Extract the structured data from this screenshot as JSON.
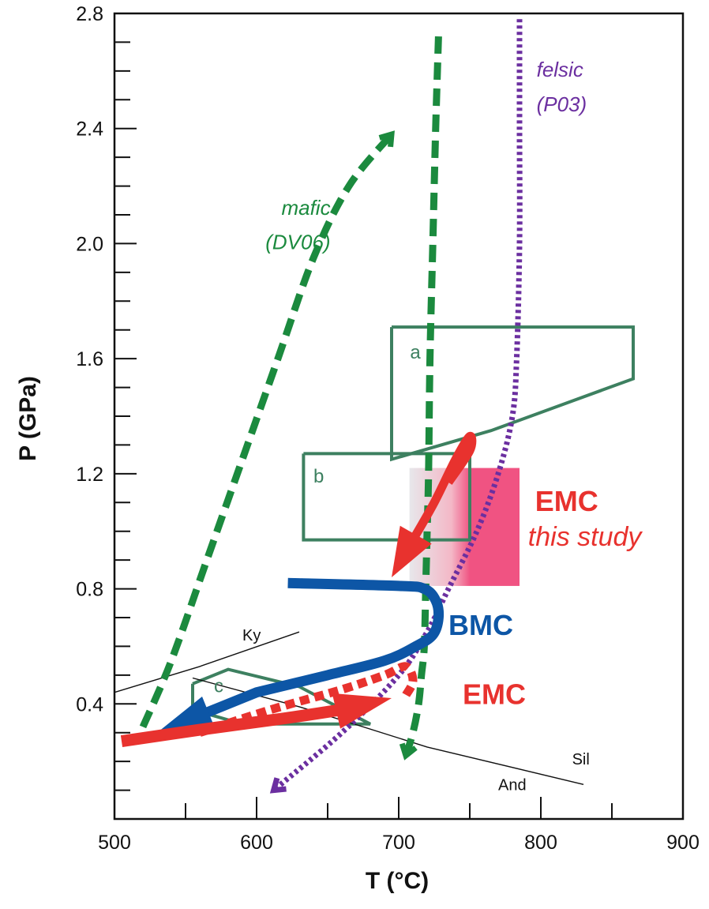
{
  "chart_data": {
    "type": "line",
    "title": "",
    "xlabel": "T (°C)",
    "ylabel": "P (GPa)",
    "xlim": [
      500,
      900
    ],
    "ylim": [
      0.0,
      2.8
    ],
    "x_ticks": [
      500,
      600,
      700,
      800,
      900
    ],
    "x_tick_labels": [
      "500",
      "600",
      "700",
      "800",
      "900"
    ],
    "y_ticks": [
      0.4,
      0.8,
      1.2,
      1.6,
      2.0,
      2.4,
      2.8
    ],
    "y_tick_labels": [
      "0.4",
      "0.8",
      "1.2",
      "1.6",
      "2.0",
      "2.4",
      "2.8"
    ],
    "grid": false,
    "colors": {
      "green": "#1b8a3e",
      "box_green": "#3d8060",
      "purple": "#6b2fa0",
      "red": "#e8322e",
      "blue": "#0d56a6",
      "pink": "#ef4a7b"
    },
    "series": [
      {
        "name": "mafic (DV06)",
        "style": "dashed",
        "color": "#1b8a3e",
        "x": [
          520,
          540,
          565,
          590,
          615,
          640,
          665,
          695
        ],
        "y": [
          0.32,
          0.55,
          0.9,
          1.25,
          1.6,
          1.95,
          2.2,
          2.38
        ]
      },
      {
        "name": "",
        "style": "dashed",
        "color": "#1b8a3e",
        "x": [
          728,
          726,
          724,
          722,
          721,
          720,
          719,
          718,
          716,
          714,
          710,
          705
        ],
        "y": [
          2.72,
          2.4,
          2.0,
          1.6,
          1.2,
          1.0,
          0.8,
          0.6,
          0.5,
          0.4,
          0.3,
          0.22
        ]
      },
      {
        "name": "felsic (P03)",
        "style": "dotted",
        "color": "#6b2fa0",
        "x": [
          785,
          785,
          785,
          783,
          780,
          770,
          755,
          735,
          720,
          700,
          660,
          612
        ],
        "y": [
          2.78,
          2.4,
          2.0,
          1.6,
          1.4,
          1.2,
          1.0,
          0.8,
          0.65,
          0.5,
          0.3,
          0.1
        ]
      },
      {
        "name": "BMC",
        "style": "solid",
        "color": "#0d56a6",
        "x": [
          622,
          700,
          718,
          726,
          728,
          724,
          712,
          690,
          650,
          600,
          530
        ],
        "y": [
          0.82,
          0.81,
          0.8,
          0.76,
          0.7,
          0.64,
          0.6,
          0.55,
          0.5,
          0.44,
          0.3
        ]
      },
      {
        "name": "EMC",
        "style": "solid",
        "color": "#e8322e",
        "x": [
          505,
          560,
          620,
          660,
          695
        ],
        "y": [
          0.27,
          0.31,
          0.35,
          0.38,
          0.42
        ]
      },
      {
        "name": "",
        "style": "dotted",
        "color": "#e8322e",
        "x": [
          560,
          610,
          660,
          690,
          705,
          710,
          705
        ],
        "y": [
          0.3,
          0.38,
          0.45,
          0.5,
          0.53,
          0.48,
          0.43
        ]
      },
      {
        "name": "EMC this study",
        "style": "solid",
        "color": "#e8322e",
        "x": [
          735,
          750,
          750,
          740,
          725,
          710,
          695
        ],
        "y": [
          1.17,
          1.28,
          1.33,
          1.25,
          1.1,
          0.97,
          0.84
        ]
      }
    ],
    "boxes": [
      {
        "label": "a",
        "x": [
          695,
          865,
          865,
          765,
          695,
          695
        ],
        "y": [
          1.71,
          1.71,
          1.53,
          1.35,
          1.25,
          1.71
        ]
      },
      {
        "label": "b",
        "x": [
          633,
          750,
          750,
          633,
          633
        ],
        "y": [
          1.27,
          1.27,
          0.97,
          0.97,
          1.27
        ]
      },
      {
        "label": "c",
        "x": [
          555,
          580,
          630,
          680,
          590,
          555,
          555
        ],
        "y": [
          0.47,
          0.52,
          0.46,
          0.33,
          0.33,
          0.38,
          0.47
        ]
      }
    ],
    "reaction_lines": [
      {
        "x": [
          500,
          560,
          630
        ],
        "y": [
          0.44,
          0.53,
          0.65
        ]
      },
      {
        "x": [
          555,
          630,
          720,
          830
        ],
        "y": [
          0.49,
          0.39,
          0.25,
          0.12
        ]
      }
    ],
    "shaded_region": {
      "x": [
        702,
        785
      ],
      "y": [
        0.81,
        1.22
      ]
    },
    "annotations": [
      {
        "text": "mafic",
        "x": 652,
        "y": 2.1
      },
      {
        "text": "(DV06)",
        "x": 652,
        "y": 1.98
      },
      {
        "text": "felsic",
        "x": 797,
        "y": 2.58
      },
      {
        "text": "(P03)",
        "x": 797,
        "y": 2.46
      },
      {
        "text": "EMC",
        "x": 796,
        "y": 1.07
      },
      {
        "text": "this study",
        "x": 791,
        "y": 0.95
      },
      {
        "text": "BMC",
        "x": 735,
        "y": 0.64
      },
      {
        "text": "EMC",
        "x": 745,
        "y": 0.4
      },
      {
        "text": "Ky",
        "x": 590,
        "y": 0.62
      },
      {
        "text": "Sil",
        "x": 822,
        "y": 0.19
      },
      {
        "text": "And",
        "x": 770,
        "y": 0.1
      }
    ]
  }
}
